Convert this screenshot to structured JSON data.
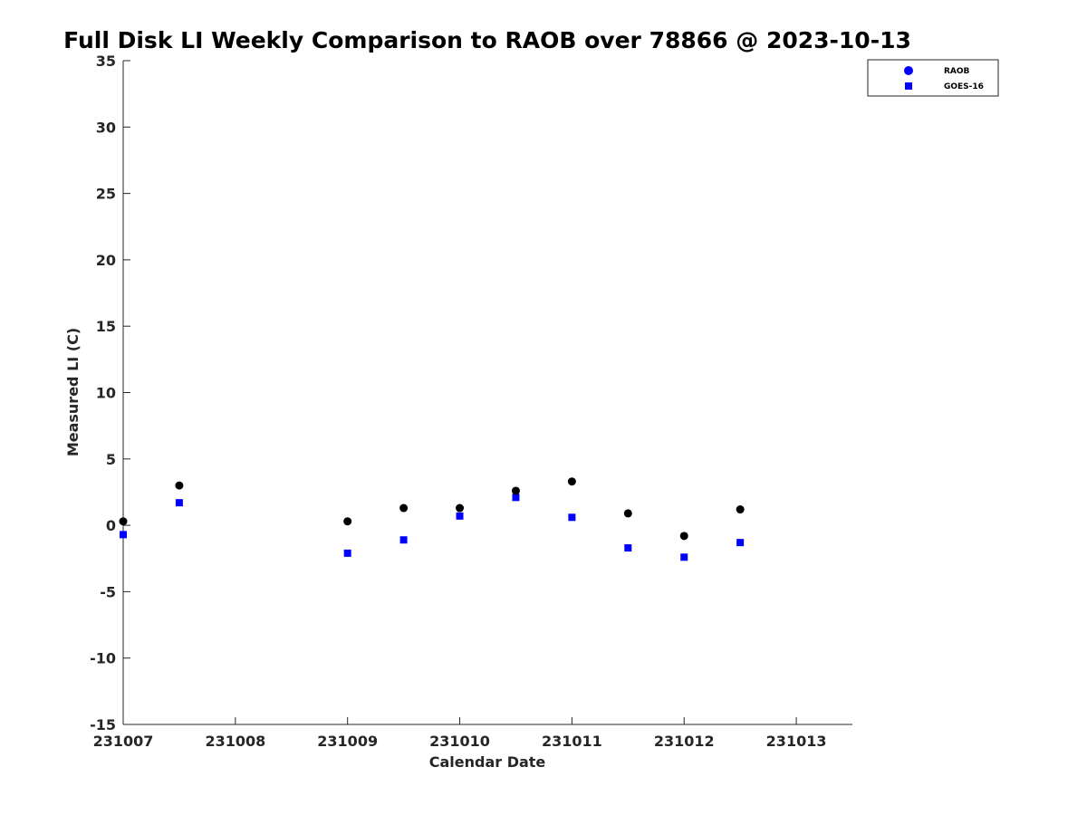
{
  "chart_data": {
    "type": "scatter",
    "title": "Full Disk LI Weekly Comparison to RAOB over 78866 @ 2023-10-13",
    "xlabel": "Calendar Date",
    "ylabel": "Measured LI (C)",
    "xlim": [
      "231007",
      "231013.5"
    ],
    "ylim": [
      -15,
      35
    ],
    "x_ticks": [
      "231007",
      "231008",
      "231009",
      "231010",
      "231011",
      "231012",
      "231013"
    ],
    "y_ticks": [
      -15,
      -10,
      -5,
      0,
      5,
      10,
      15,
      20,
      25,
      30,
      35
    ],
    "grid": false,
    "legend_position": "top-right, outside plot",
    "series": [
      {
        "name": "RAOB",
        "marker": "circle",
        "color": "#000000",
        "legend_color": "#0000ff",
        "points": [
          {
            "x": "231007 00Z",
            "y": 0.3
          },
          {
            "x": "231007 12Z",
            "y": 3.0
          },
          {
            "x": "231009 00Z",
            "y": 0.3
          },
          {
            "x": "231009 12Z",
            "y": 1.3
          },
          {
            "x": "231010 00Z",
            "y": 1.3
          },
          {
            "x": "231010 12Z",
            "y": 2.6
          },
          {
            "x": "231011 00Z",
            "y": 3.3
          },
          {
            "x": "231011 12Z",
            "y": 0.9
          },
          {
            "x": "231012 00Z",
            "y": -0.8
          },
          {
            "x": "231012 12Z",
            "y": 1.2
          }
        ]
      },
      {
        "name": "GOES-16",
        "marker": "square",
        "color": "#0000ff",
        "legend_color": "#0000ff",
        "points": [
          {
            "x": "231007 00Z",
            "y": -0.7
          },
          {
            "x": "231007 12Z",
            "y": 1.7
          },
          {
            "x": "231009 00Z",
            "y": -2.1
          },
          {
            "x": "231009 12Z",
            "y": -1.1
          },
          {
            "x": "231010 00Z",
            "y": 0.7
          },
          {
            "x": "231010 12Z",
            "y": 2.1
          },
          {
            "x": "231011 00Z",
            "y": 0.6
          },
          {
            "x": "231011 12Z",
            "y": -1.7
          },
          {
            "x": "231012 00Z",
            "y": -2.4
          },
          {
            "x": "231012 12Z",
            "y": -1.3
          }
        ]
      }
    ]
  }
}
